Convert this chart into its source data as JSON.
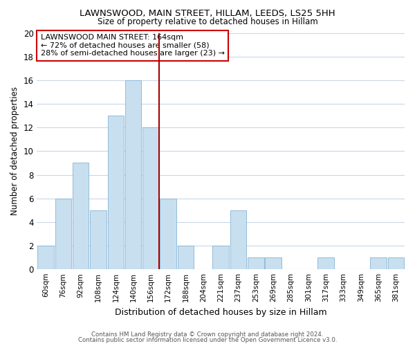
{
  "title1": "LAWNSWOOD, MAIN STREET, HILLAM, LEEDS, LS25 5HH",
  "title2": "Size of property relative to detached houses in Hillam",
  "xlabel": "Distribution of detached houses by size in Hillam",
  "ylabel": "Number of detached properties",
  "categories": [
    "60sqm",
    "76sqm",
    "92sqm",
    "108sqm",
    "124sqm",
    "140sqm",
    "156sqm",
    "172sqm",
    "188sqm",
    "204sqm",
    "221sqm",
    "237sqm",
    "253sqm",
    "269sqm",
    "285sqm",
    "301sqm",
    "317sqm",
    "333sqm",
    "349sqm",
    "365sqm",
    "381sqm"
  ],
  "values": [
    2,
    6,
    9,
    5,
    13,
    16,
    12,
    6,
    2,
    0,
    2,
    5,
    1,
    1,
    0,
    0,
    1,
    0,
    0,
    1,
    1
  ],
  "bar_color": "#c8dff0",
  "bar_edge_color": "#85b4d4",
  "ref_line_color": "#aa0000",
  "annotation_title": "LAWNSWOOD MAIN STREET: 164sqm",
  "annotation_line1": "← 72% of detached houses are smaller (58)",
  "annotation_line2": "28% of semi-detached houses are larger (23) →",
  "annotation_box_color": "#ffffff",
  "annotation_box_edge": "#cc0000",
  "ylim": [
    0,
    20
  ],
  "yticks": [
    0,
    2,
    4,
    6,
    8,
    10,
    12,
    14,
    16,
    18,
    20
  ],
  "footer1": "Contains HM Land Registry data © Crown copyright and database right 2024.",
  "footer2": "Contains public sector information licensed under the Open Government Licence v3.0.",
  "bg_color": "#ffffff",
  "grid_color": "#c8d8e8",
  "ref_bar_index": 6
}
